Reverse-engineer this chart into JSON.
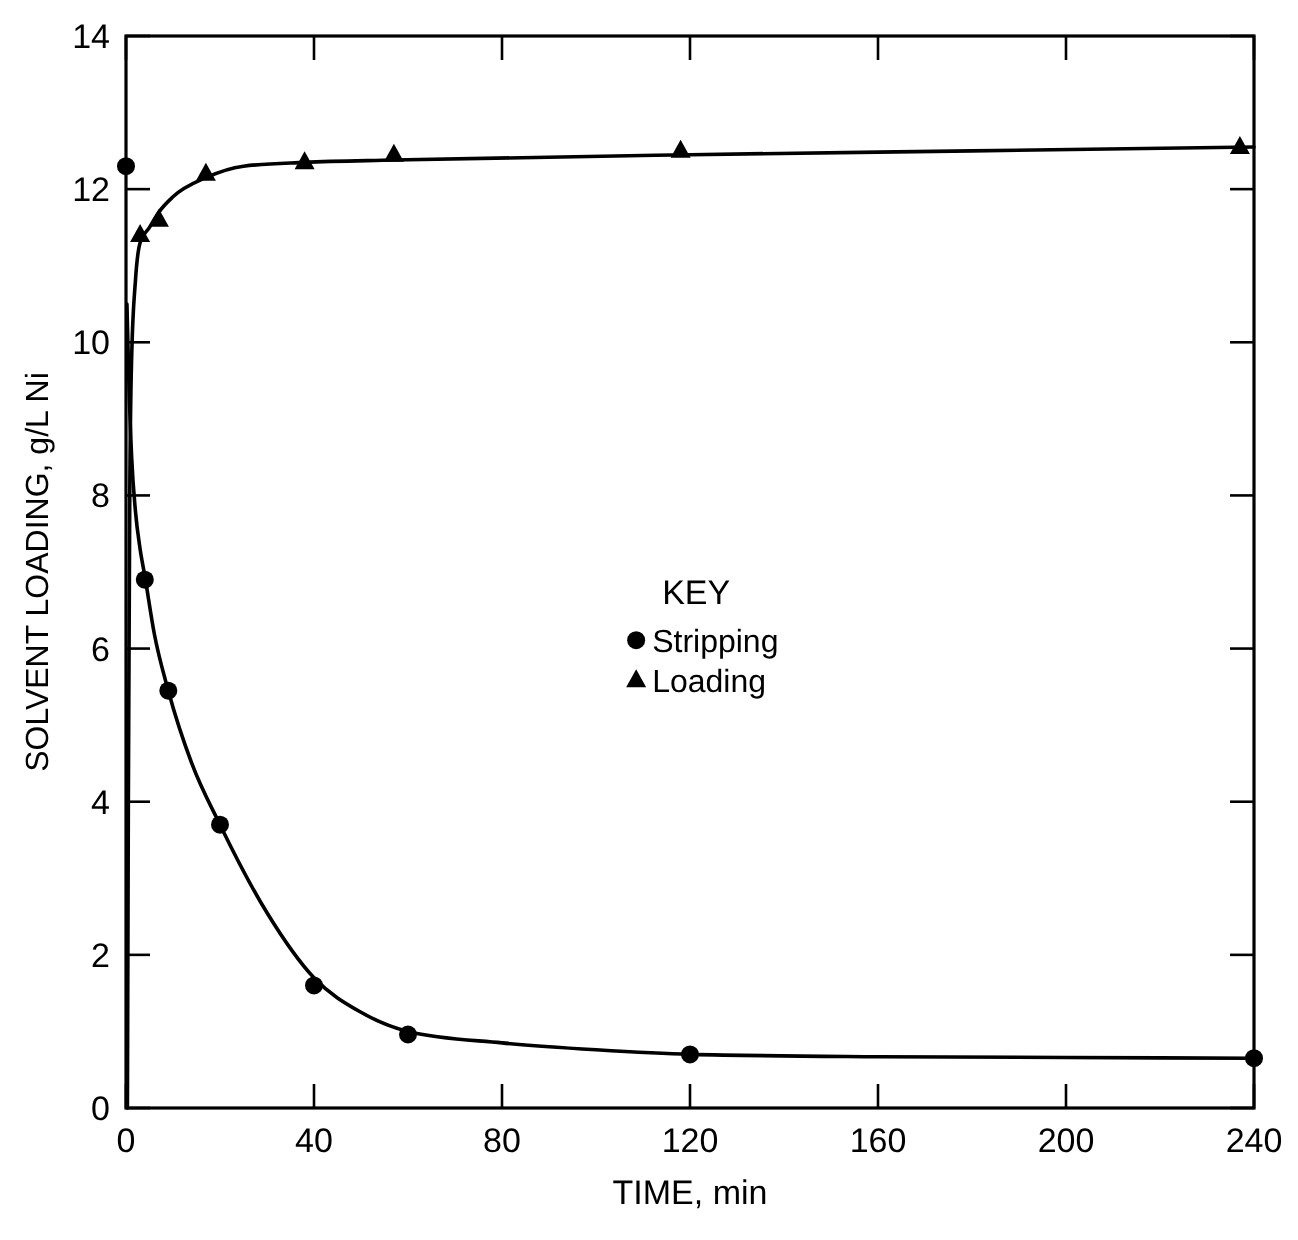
{
  "chart_data": {
    "type": "scatter",
    "xlabel": "TIME, min",
    "ylabel": "SOLVENT LOADING, g/L Ni",
    "legend_title": "KEY",
    "legend": "center",
    "xlim": [
      0,
      240
    ],
    "xticks": [
      0,
      40,
      80,
      120,
      160,
      200,
      240
    ],
    "ylim": [
      0,
      14
    ],
    "yticks": [
      0,
      2,
      4,
      6,
      8,
      10,
      12,
      14
    ],
    "grid": false,
    "series": [
      {
        "name": "Stripping",
        "marker": "circle",
        "color": "#000000",
        "x": [
          0,
          4,
          9,
          20,
          40,
          60,
          120,
          240
        ],
        "values": [
          12.3,
          6.9,
          5.45,
          3.7,
          1.6,
          0.96,
          0.7,
          0.65
        ]
      },
      {
        "name": "Loading",
        "marker": "triangle",
        "color": "#000000",
        "x": [
          3,
          7,
          17,
          38,
          57,
          118,
          237
        ],
        "values": [
          11.4,
          11.6,
          12.2,
          12.35,
          12.45,
          12.5,
          12.55
        ]
      },
      {
        "type": "line",
        "marker": "none",
        "color": "#000000",
        "x": [
          0.2,
          0.6,
          1.2,
          2,
          3,
          4,
          6,
          9,
          14,
          20,
          30,
          40,
          50,
          60,
          80,
          100,
          120,
          160,
          200,
          240
        ],
        "values": [
          10.5,
          9.5,
          8.5,
          7.8,
          7.3,
          6.95,
          6.2,
          5.45,
          4.5,
          3.7,
          2.55,
          1.7,
          1.25,
          1.0,
          0.85,
          0.76,
          0.7,
          0.67,
          0.66,
          0.65
        ]
      },
      {
        "type": "line",
        "marker": "none",
        "color": "#000000",
        "x": [
          0.3,
          0.5,
          0.8,
          1.2,
          2,
          3,
          5,
          7,
          10,
          17,
          25,
          38,
          57,
          120,
          180,
          240
        ],
        "values": [
          0,
          4,
          8,
          9.8,
          10.8,
          11.3,
          11.5,
          11.7,
          11.9,
          12.15,
          12.3,
          12.35,
          12.38,
          12.45,
          12.5,
          12.55
        ]
      }
    ]
  }
}
